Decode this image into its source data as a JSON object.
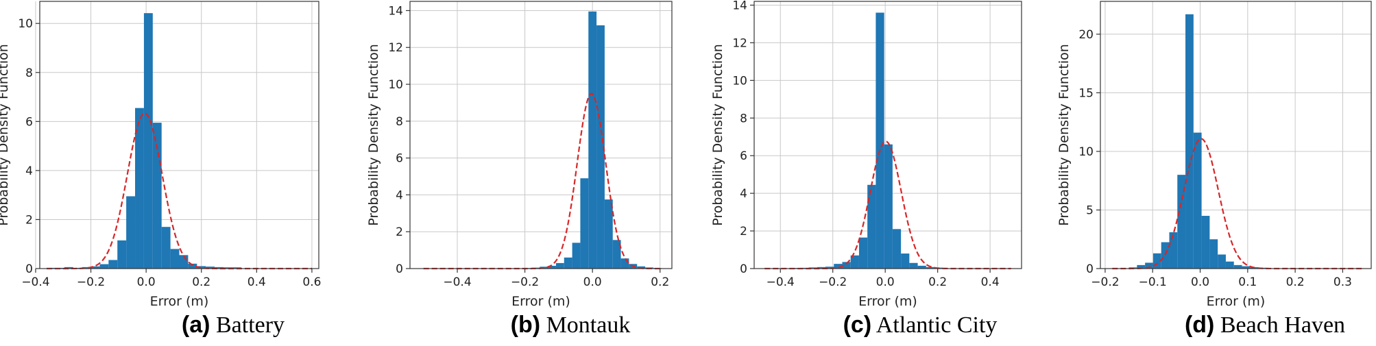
{
  "chart_data": [
    {
      "type": "bar",
      "subtype": "histogram-with-fitted-normal",
      "caption_letter": "(a)",
      "caption_name": "Battery",
      "xlabel": "Error (m)",
      "ylabel": "Probability Density Function",
      "xlim": [
        -0.385,
        0.625
      ],
      "ylim": [
        0,
        10.9
      ],
      "xticks": [
        -0.4,
        -0.2,
        0.0,
        0.2,
        0.4,
        0.6
      ],
      "xtick_labels": [
        "−0.4",
        "−0.2",
        "0.0",
        "0.2",
        "0.4",
        "0.6"
      ],
      "yticks": [
        0,
        2,
        4,
        6,
        8,
        10
      ],
      "bin_edges": [
        -0.36,
        -0.328,
        -0.296,
        -0.264,
        -0.232,
        -0.2,
        -0.168,
        -0.136,
        -0.104,
        -0.072,
        -0.04,
        -0.008,
        0.024,
        0.056,
        0.088,
        0.12,
        0.152,
        0.184,
        0.216,
        0.248,
        0.28,
        0.312,
        0.344
      ],
      "values": [
        0.03,
        0.03,
        0.06,
        0.03,
        0.06,
        0.09,
        0.18,
        0.35,
        1.15,
        2.95,
        6.55,
        10.42,
        5.95,
        1.7,
        0.8,
        0.55,
        0.2,
        0.1,
        0.08,
        0.06,
        0.05,
        0.05
      ],
      "fit": {
        "mean": -0.005,
        "std": 0.063,
        "x_range": [
          -0.36,
          0.6
        ]
      },
      "bar_color": "#1f77b4",
      "fit_color": "#d62728",
      "grid": true
    },
    {
      "type": "bar",
      "subtype": "histogram-with-fitted-normal",
      "caption_letter": "(b)",
      "caption_name": "Montauk",
      "xlabel": "Error (m)",
      "ylabel": "Probability Density Function",
      "xlim": [
        -0.54,
        0.235
      ],
      "ylim": [
        0,
        14.5
      ],
      "xticks": [
        -0.4,
        -0.2,
        0.0,
        0.2
      ],
      "xtick_labels": [
        "−0.4",
        "−0.2",
        "0.0",
        "0.2"
      ],
      "yticks": [
        0,
        2,
        4,
        6,
        8,
        10,
        12,
        14
      ],
      "bin_edges": [
        -0.204,
        -0.18,
        -0.156,
        -0.132,
        -0.108,
        -0.084,
        -0.06,
        -0.036,
        -0.012,
        0.012,
        0.036,
        0.06,
        0.084,
        0.108,
        0.132,
        0.156,
        0.18,
        0.204
      ],
      "values": [
        0.03,
        0.05,
        0.1,
        0.15,
        0.3,
        0.6,
        1.4,
        4.9,
        13.95,
        13.2,
        3.75,
        1.55,
        0.55,
        0.25,
        0.12,
        0.06,
        0.03
      ],
      "fit": {
        "mean": -0.003,
        "std": 0.042,
        "x_range": [
          -0.5,
          0.2
        ]
      },
      "bar_color": "#1f77b4",
      "fit_color": "#d62728",
      "grid": true
    },
    {
      "type": "bar",
      "subtype": "histogram-with-fitted-normal",
      "caption_letter": "(c)",
      "caption_name": "Atlantic City",
      "xlabel": "Error (m)",
      "ylabel": "Probability Density Function",
      "xlim": [
        -0.5,
        0.52
      ],
      "ylim": [
        0,
        14.2
      ],
      "xticks": [
        -0.4,
        -0.2,
        0.0,
        0.2,
        0.4
      ],
      "xtick_labels": [
        "−0.4",
        "−0.2",
        "0.0",
        "0.2",
        "0.4"
      ],
      "yticks": [
        0,
        2,
        4,
        6,
        8,
        10,
        12,
        14
      ],
      "bin_edges": [
        -0.356,
        -0.324,
        -0.292,
        -0.26,
        -0.228,
        -0.196,
        -0.164,
        -0.132,
        -0.1,
        -0.068,
        -0.036,
        -0.004,
        0.028,
        0.06,
        0.092,
        0.124,
        0.156,
        0.188,
        0.22
      ],
      "values": [
        0.03,
        0.04,
        0.06,
        0.08,
        0.1,
        0.25,
        0.35,
        0.7,
        1.65,
        4.45,
        13.6,
        6.6,
        2.1,
        0.8,
        0.3,
        0.15,
        0.08,
        0.05
      ],
      "fit": {
        "mean": 0.002,
        "std": 0.059,
        "x_range": [
          -0.46,
          0.48
        ]
      },
      "bar_color": "#1f77b4",
      "fit_color": "#d62728",
      "grid": true
    },
    {
      "type": "bar",
      "subtype": "histogram-with-fitted-normal",
      "caption_letter": "(d)",
      "caption_name": "Beach Haven",
      "xlabel": "Error (m)",
      "ylabel": "Probability Density Function",
      "xlim": [
        -0.21,
        0.36
      ],
      "ylim": [
        0,
        22.8
      ],
      "xticks": [
        -0.2,
        -0.1,
        0.0,
        0.1,
        0.2,
        0.3
      ],
      "xtick_labels": [
        "−0.2",
        "−0.1",
        "0.0",
        "0.1",
        "0.2",
        "0.3"
      ],
      "yticks": [
        0,
        5,
        10,
        15,
        20
      ],
      "bin_edges": [
        -0.15,
        -0.133,
        -0.116,
        -0.099,
        -0.082,
        -0.065,
        -0.048,
        -0.031,
        -0.014,
        0.003,
        0.02,
        0.037,
        0.054,
        0.071,
        0.088,
        0.105,
        0.122,
        0.139
      ],
      "values": [
        0.1,
        0.3,
        0.5,
        1.3,
        2.25,
        3.1,
        8.0,
        21.7,
        11.6,
        4.5,
        2.5,
        1.2,
        0.6,
        0.3,
        0.2,
        0.12,
        0.07
      ],
      "fit": {
        "mean": 0.002,
        "std": 0.036,
        "x_range": [
          -0.185,
          0.34
        ]
      },
      "bar_color": "#1f77b4",
      "fit_color": "#d62728",
      "grid": true
    }
  ]
}
